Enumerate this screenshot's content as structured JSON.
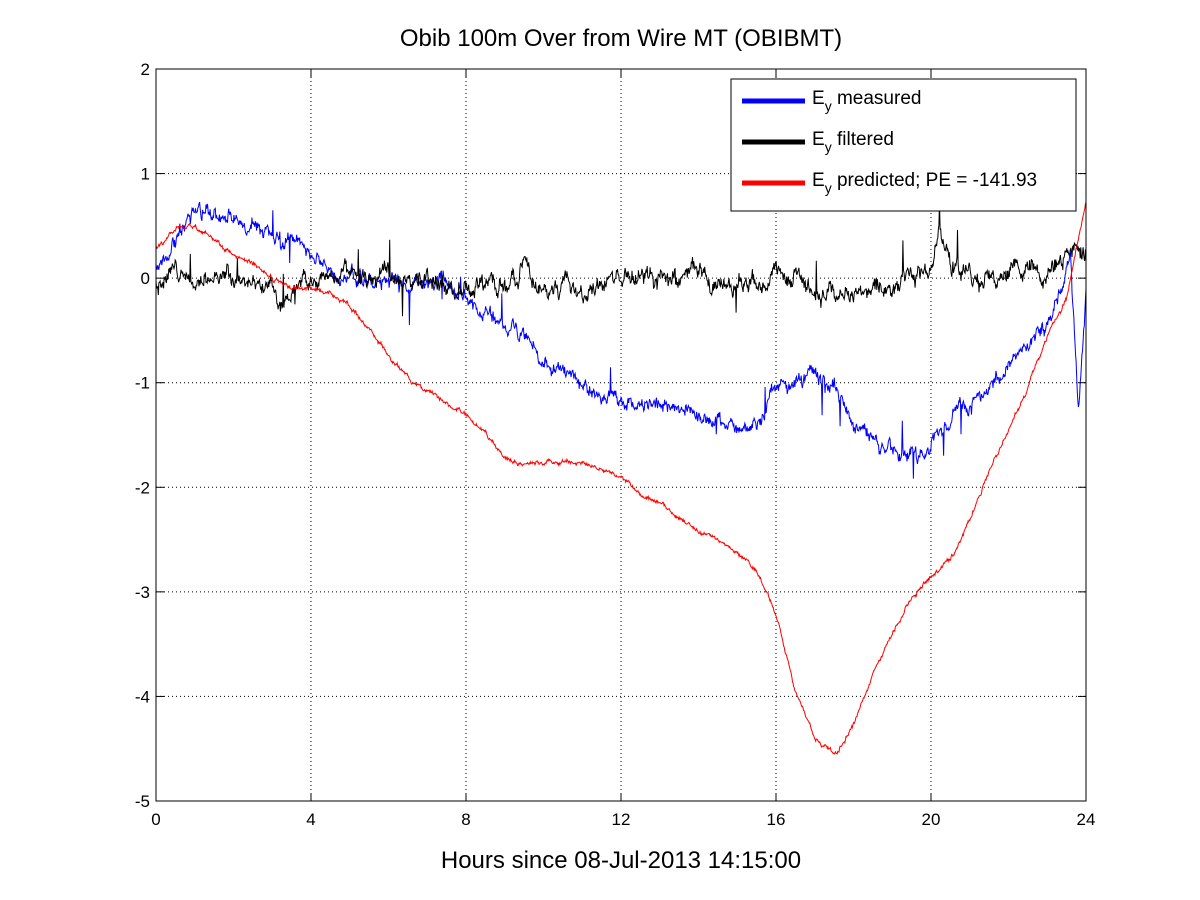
{
  "chart_data": {
    "type": "line",
    "title": "Obib 100m Over from Wire MT (OBIBMT)",
    "xlabel": "Hours since 08-Jul-2013 14:15:00",
    "ylabel": "",
    "xlim": [
      0,
      24
    ],
    "ylim": [
      -5,
      2
    ],
    "xticks": [
      0,
      4,
      8,
      12,
      16,
      20,
      24
    ],
    "yticks": [
      -5,
      -4,
      -3,
      -2,
      -1,
      0,
      1,
      2
    ],
    "grid": true,
    "legend_position": "top-right",
    "series": [
      {
        "name": "measured",
        "legend_main": "E",
        "legend_sub": "y",
        "legend_rest": " measured",
        "color": "#0000ff",
        "noise": 0.08,
        "points": [
          [
            0,
            0.1
          ],
          [
            0.3,
            0.25
          ],
          [
            0.8,
            0.55
          ],
          [
            1.3,
            0.65
          ],
          [
            2.0,
            0.6
          ],
          [
            2.6,
            0.45
          ],
          [
            3.2,
            0.35
          ],
          [
            3.6,
            0.35
          ],
          [
            4.0,
            0.25
          ],
          [
            4.5,
            0.05
          ],
          [
            5.0,
            0.0
          ],
          [
            6.0,
            0.0
          ],
          [
            7.0,
            -0.05
          ],
          [
            7.5,
            0.0
          ],
          [
            8.0,
            -0.2
          ],
          [
            8.5,
            -0.35
          ],
          [
            9.0,
            -0.45
          ],
          [
            9.6,
            -0.6
          ],
          [
            10.0,
            -0.8
          ],
          [
            10.5,
            -0.9
          ],
          [
            11.0,
            -1.0
          ],
          [
            11.5,
            -1.1
          ],
          [
            12.0,
            -1.15
          ],
          [
            13.0,
            -1.2
          ],
          [
            14.0,
            -1.3
          ],
          [
            15.0,
            -1.45
          ],
          [
            15.5,
            -1.45
          ],
          [
            16.0,
            -1.05
          ],
          [
            17.0,
            -0.95
          ],
          [
            17.5,
            -1.0
          ],
          [
            18.0,
            -1.45
          ],
          [
            19.0,
            -1.65
          ],
          [
            19.8,
            -1.75
          ],
          [
            20.2,
            -1.45
          ],
          [
            20.6,
            -1.25
          ],
          [
            21.5,
            -1.05
          ],
          [
            22.2,
            -0.75
          ],
          [
            22.8,
            -0.55
          ],
          [
            23.3,
            -0.2
          ],
          [
            23.6,
            0.3
          ],
          [
            23.8,
            -1.3
          ],
          [
            24.0,
            -0.1
          ]
        ]
      },
      {
        "name": "filtered",
        "legend_main": "E",
        "legend_sub": "y",
        "legend_rest": " filtered",
        "color": "#000000",
        "noise": 0.1,
        "points": [
          [
            0,
            0.0
          ],
          [
            0.5,
            0.12
          ],
          [
            1.0,
            0.05
          ],
          [
            2.0,
            0.0
          ],
          [
            3.0,
            0.0
          ],
          [
            3.3,
            -0.3
          ],
          [
            3.6,
            -0.1
          ],
          [
            4.0,
            0.0
          ],
          [
            5.0,
            0.0
          ],
          [
            6.0,
            0.05
          ],
          [
            7.0,
            0.0
          ],
          [
            8.0,
            -0.1
          ],
          [
            8.5,
            0.0
          ],
          [
            9.0,
            -0.05
          ],
          [
            9.6,
            0.05
          ],
          [
            10.0,
            -0.2
          ],
          [
            10.5,
            0.0
          ],
          [
            11.0,
            -0.1
          ],
          [
            12.0,
            0.0
          ],
          [
            13.0,
            0.0
          ],
          [
            14.0,
            0.0
          ],
          [
            15.0,
            -0.05
          ],
          [
            15.5,
            -0.05
          ],
          [
            16.0,
            0.1
          ],
          [
            17.0,
            -0.1
          ],
          [
            18.0,
            -0.15
          ],
          [
            19.0,
            -0.05
          ],
          [
            20.0,
            0.1
          ],
          [
            20.2,
            0.5
          ],
          [
            20.5,
            0.1
          ],
          [
            21.0,
            0.0
          ],
          [
            22.0,
            0.05
          ],
          [
            23.0,
            0.05
          ],
          [
            23.5,
            0.2
          ],
          [
            24.0,
            0.3
          ]
        ]
      },
      {
        "name": "predicted; PE = -141.93",
        "legend_main": "E",
        "legend_sub": "y",
        "legend_rest": " predicted; PE = -141.93",
        "color": "#ff0000",
        "noise": 0.025,
        "points": [
          [
            0,
            0.28
          ],
          [
            0.3,
            0.38
          ],
          [
            0.6,
            0.5
          ],
          [
            1.0,
            0.5
          ],
          [
            1.5,
            0.38
          ],
          [
            2.0,
            0.22
          ],
          [
            2.5,
            0.12
          ],
          [
            3.0,
            0.0
          ],
          [
            3.5,
            -0.1
          ],
          [
            4.0,
            -0.1
          ],
          [
            4.5,
            -0.15
          ],
          [
            5.0,
            -0.25
          ],
          [
            5.5,
            -0.5
          ],
          [
            6.0,
            -0.75
          ],
          [
            6.5,
            -0.95
          ],
          [
            7.0,
            -1.1
          ],
          [
            7.5,
            -1.2
          ],
          [
            8.0,
            -1.3
          ],
          [
            8.5,
            -1.5
          ],
          [
            9.0,
            -1.7
          ],
          [
            9.5,
            -1.8
          ],
          [
            10.0,
            -1.75
          ],
          [
            10.5,
            -1.75
          ],
          [
            11.0,
            -1.77
          ],
          [
            12.0,
            -1.9
          ],
          [
            12.5,
            -2.05
          ],
          [
            13.0,
            -2.15
          ],
          [
            13.5,
            -2.3
          ],
          [
            14.0,
            -2.42
          ],
          [
            14.5,
            -2.5
          ],
          [
            15.0,
            -2.62
          ],
          [
            15.5,
            -2.8
          ],
          [
            16.0,
            -3.2
          ],
          [
            16.5,
            -3.95
          ],
          [
            17.0,
            -4.4
          ],
          [
            17.3,
            -4.5
          ],
          [
            17.6,
            -4.55
          ],
          [
            18.0,
            -4.25
          ],
          [
            18.5,
            -3.8
          ],
          [
            19.0,
            -3.4
          ],
          [
            19.5,
            -3.05
          ],
          [
            20.0,
            -2.85
          ],
          [
            20.5,
            -2.7
          ],
          [
            21.0,
            -2.3
          ],
          [
            21.5,
            -1.85
          ],
          [
            22.0,
            -1.45
          ],
          [
            22.5,
            -1.05
          ],
          [
            23.0,
            -0.55
          ],
          [
            23.5,
            -0.2
          ],
          [
            24.0,
            0.75
          ]
        ]
      }
    ]
  }
}
